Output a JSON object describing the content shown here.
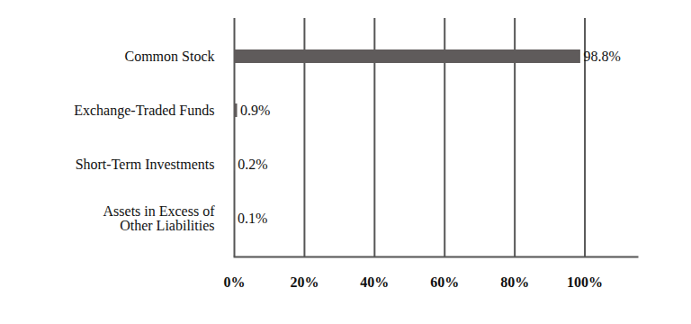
{
  "chart_data": {
    "type": "bar",
    "orientation": "horizontal",
    "categories": [
      "Common Stock",
      "Exchange-Traded Funds",
      "Short-Term Investments",
      "Assets in Excess of\nOther Liabilities"
    ],
    "values": [
      98.8,
      0.9,
      0.2,
      0.1
    ],
    "value_labels": [
      "98.8%",
      "0.9%",
      "0.2%",
      "0.1%"
    ],
    "data_labels": true,
    "color": "#5f5b5b",
    "xlim": [
      0,
      115
    ],
    "xticks": [
      {
        "value": 0,
        "label": "0%"
      },
      {
        "value": 20,
        "label": "20%"
      },
      {
        "value": 40,
        "label": "40%"
      },
      {
        "value": 60,
        "label": "60%"
      },
      {
        "value": 80,
        "label": "80%"
      },
      {
        "value": 100,
        "label": "100%"
      }
    ],
    "grid": true
  }
}
